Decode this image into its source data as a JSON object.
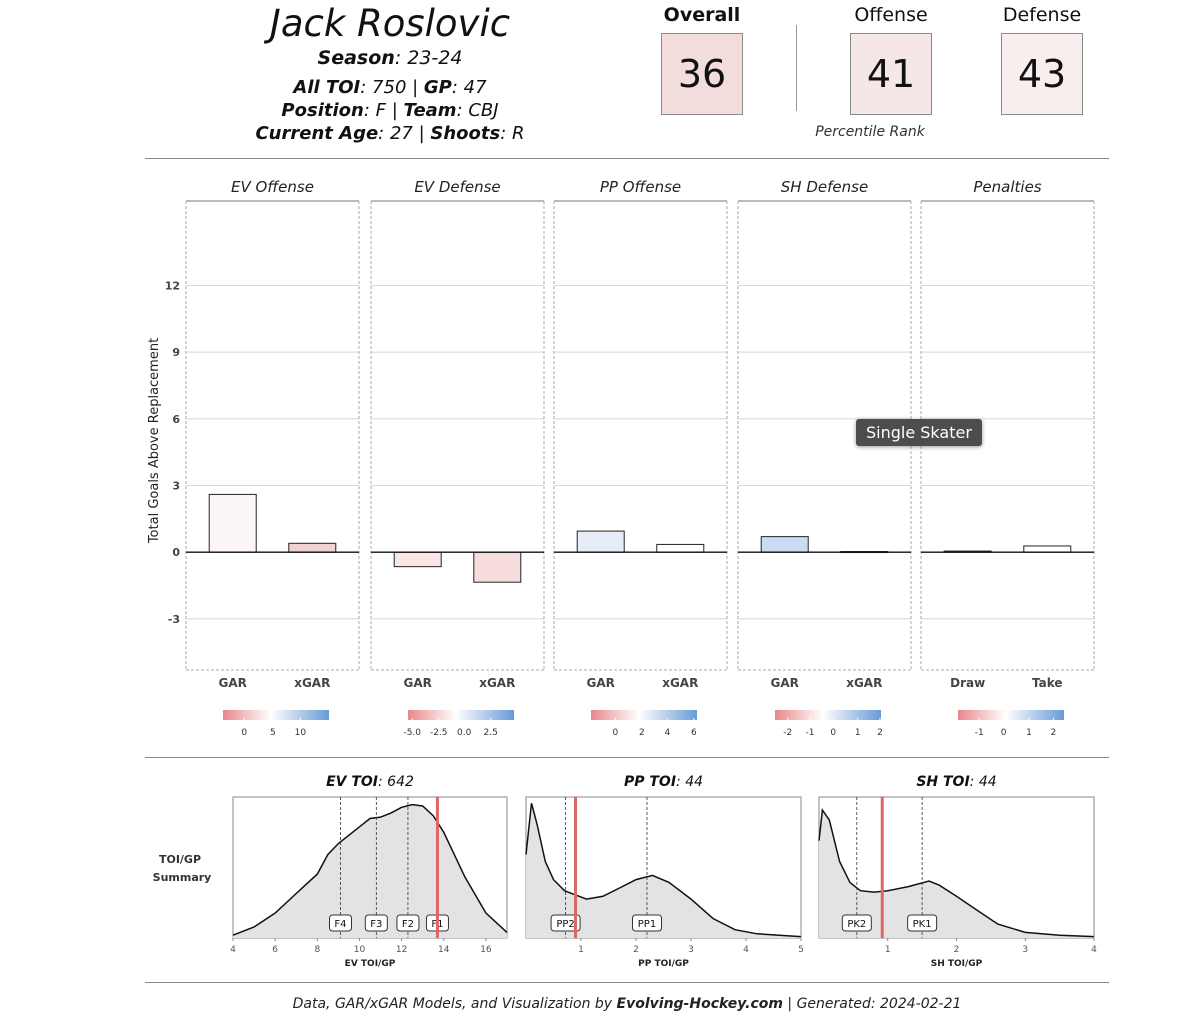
{
  "header": {
    "player_name": "Jack Roslovic",
    "season_label": "Season",
    "season_value": ": 23-24",
    "toi_label": "All TOI",
    "toi_value": ": 750 | ",
    "gp_label": "GP",
    "gp_value": ": 47",
    "position_label": "Position",
    "position_value": ": F | ",
    "team_label": "Team",
    "team_value": ": CBJ",
    "age_label": "Current Age",
    "age_value": ": 27 | ",
    "shoots_label": "Shoots",
    "shoots_value": ": R"
  },
  "ranks": {
    "overall_label": "Overall",
    "overall_value": "36",
    "offense_label": "Offense",
    "offense_value": "41",
    "defense_label": "Defense",
    "defense_value": "43",
    "note": "Percentile Rank",
    "colors": {
      "overall": "#f3dcdc",
      "offense": "#f6e7e7",
      "defense": "#f8eeee"
    }
  },
  "tooltip": "Single Skater",
  "footer": {
    "prefix": "Data, GAR/xGAR Models, and Visualization by ",
    "site": "Evolving-Hockey.com",
    "suffix": " | Generated: 2024-02-21"
  },
  "chart_data": [
    {
      "type": "bar",
      "ylabel": "Total Goals Above Replacement",
      "ylim": [
        -5.3,
        15.8
      ],
      "yticks": [
        -3,
        0,
        3,
        6,
        9,
        12
      ],
      "panels": [
        {
          "title": "EV Offense",
          "categories": [
            "GAR",
            "xGAR"
          ],
          "values": [
            2.6,
            0.4
          ],
          "colors": [
            "#fdf6f6",
            "#f1d2d2"
          ],
          "legend": {
            "ticks": [
              "0",
              "5",
              "10"
            ],
            "ticks_at": [
              0.2,
              0.47,
              0.73
            ]
          }
        },
        {
          "title": "EV Defense",
          "categories": [
            "GAR",
            "xGAR"
          ],
          "values": [
            -0.65,
            -1.35
          ],
          "colors": [
            "#f8e6e6",
            "#f6dcdc"
          ],
          "legend": {
            "ticks": [
              "-5.0",
              "-2.5",
              "0.0",
              "2.5"
            ],
            "ticks_at": [
              0.04,
              0.29,
              0.53,
              0.78
            ]
          }
        },
        {
          "title": "PP Offense",
          "categories": [
            "GAR",
            "xGAR"
          ],
          "values": [
            0.95,
            0.35
          ],
          "colors": [
            "#e7edf8",
            "#ffffff"
          ],
          "legend": {
            "ticks": [
              "0",
              "2",
              "4",
              "6"
            ],
            "ticks_at": [
              0.23,
              0.48,
              0.72,
              0.97
            ]
          }
        },
        {
          "title": "SH Defense",
          "categories": [
            "GAR",
            "xGAR"
          ],
          "values": [
            0.7,
            0.03
          ],
          "colors": [
            "#ccdbf3",
            "#ffffff"
          ],
          "legend": {
            "ticks": [
              "-2",
              "-1",
              "0",
              "1",
              "2"
            ],
            "ticks_at": [
              0.12,
              0.33,
              0.55,
              0.78,
              0.99
            ]
          }
        },
        {
          "title": "Penalties",
          "categories": [
            "Draw",
            "Take"
          ],
          "values": [
            0.05,
            0.28
          ],
          "colors": [
            "#ffffff",
            "#ffffff"
          ],
          "legend": {
            "ticks": [
              "-1",
              "0",
              "1",
              "2"
            ],
            "ticks_at": [
              0.2,
              0.43,
              0.67,
              0.9
            ]
          }
        }
      ]
    },
    {
      "type": "area",
      "side_label": [
        "TOI/GP",
        "Summary"
      ],
      "panels": [
        {
          "title_bold": "EV TOI",
          "title_value": ": 642",
          "xlabel": "EV TOI/GP",
          "xlim": [
            4,
            17
          ],
          "xticks": [
            4,
            6,
            8,
            10,
            12,
            14,
            16
          ],
          "density_x": [
            4,
            5,
            6,
            7,
            8,
            8.5,
            9,
            10,
            10.5,
            11,
            11.5,
            12,
            12.5,
            13,
            13.5,
            14,
            14.5,
            15,
            16,
            17
          ],
          "density_y": [
            0.02,
            0.08,
            0.18,
            0.32,
            0.46,
            0.6,
            0.68,
            0.8,
            0.86,
            0.87,
            0.9,
            0.94,
            0.96,
            0.95,
            0.88,
            0.76,
            0.6,
            0.44,
            0.18,
            0.04
          ],
          "ymax": 1.0,
          "markers": [
            {
              "label": "F4",
              "x": 9.1
            },
            {
              "label": "F3",
              "x": 10.8
            },
            {
              "label": "F2",
              "x": 12.3
            },
            {
              "label": "F1",
              "x": 13.7
            }
          ],
          "player_x": 13.7
        },
        {
          "title_bold": "PP TOI",
          "title_value": ": 44",
          "xlabel": "PP TOI/GP",
          "xlim": [
            0,
            5
          ],
          "xticks": [
            1,
            2,
            3,
            4,
            5
          ],
          "density_x": [
            0,
            0.1,
            0.2,
            0.35,
            0.5,
            0.7,
            0.9,
            1.1,
            1.4,
            1.7,
            2.0,
            2.3,
            2.6,
            3.0,
            3.4,
            3.8,
            4.2,
            4.6,
            5.0
          ],
          "density_y": [
            0.6,
            0.97,
            0.82,
            0.55,
            0.42,
            0.34,
            0.31,
            0.28,
            0.3,
            0.36,
            0.42,
            0.45,
            0.4,
            0.28,
            0.14,
            0.06,
            0.03,
            0.02,
            0.01
          ],
          "ymax": 1.0,
          "markers": [
            {
              "label": "PP2",
              "x": 0.72
            },
            {
              "label": "PP1",
              "x": 2.2
            }
          ],
          "player_x": 0.9
        },
        {
          "title_bold": "SH TOI",
          "title_value": ": 44",
          "xlabel": "SH TOI/GP",
          "xlim": [
            0,
            4
          ],
          "xticks": [
            1,
            2,
            3,
            4
          ],
          "density_x": [
            0,
            0.05,
            0.15,
            0.3,
            0.45,
            0.6,
            0.8,
            1.0,
            1.3,
            1.6,
            1.75,
            2.0,
            2.3,
            2.6,
            3.0,
            3.5,
            4.0
          ],
          "density_y": [
            0.7,
            0.92,
            0.85,
            0.55,
            0.4,
            0.34,
            0.33,
            0.34,
            0.37,
            0.41,
            0.38,
            0.3,
            0.2,
            0.1,
            0.04,
            0.02,
            0.01
          ],
          "ymax": 1.0,
          "markers": [
            {
              "label": "PK2",
              "x": 0.55
            },
            {
              "label": "PK1",
              "x": 1.5
            }
          ],
          "player_x": 0.92
        }
      ]
    }
  ]
}
